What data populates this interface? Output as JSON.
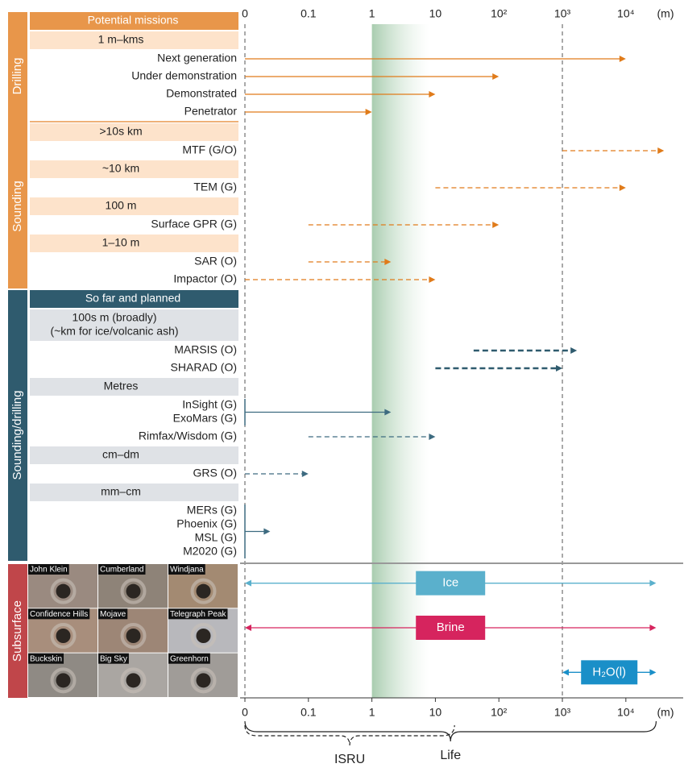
{
  "chart_data": {
    "type": "range",
    "unit": "(m)",
    "log": true,
    "xlim": [
      0.01,
      80000
    ],
    "xticks": [
      {
        "value": 0.01,
        "label": "0"
      },
      0.1,
      1,
      10,
      {
        "value": 100,
        "label": "10²"
      },
      {
        "value": 1000,
        "label": "10³"
      },
      {
        "value": 10000,
        "label": "10⁴"
      }
    ],
    "vlines": [
      0.01,
      1000
    ],
    "shade": [
      1,
      8
    ],
    "sections": [
      {
        "label": "Drilling",
        "color": "#e8964a",
        "band_color": "#fde3cb",
        "header": "Potential missions",
        "groups": [
          {
            "band": [
              "1 m–kms"
            ],
            "items": [
              {
                "labels": [
                  "Next generation"
                ],
                "from": 0.01,
                "to": 10000,
                "dashed": false,
                "color": "#e07b1a"
              },
              {
                "labels": [
                  "Under demonstration"
                ],
                "from": 0.01,
                "to": 100,
                "dashed": false,
                "color": "#e07b1a"
              },
              {
                "labels": [
                  "Demonstrated"
                ],
                "from": 0.01,
                "to": 10,
                "dashed": false,
                "color": "#e07b1a"
              },
              {
                "labels": [
                  "Penetrator"
                ],
                "from": 0.01,
                "to": 1,
                "dashed": false,
                "color": "#e07b1a"
              }
            ]
          }
        ]
      },
      {
        "label": "Sounding",
        "color": "#e8964a",
        "band_color": "#fde3cb",
        "groups": [
          {
            "band": [
              ">10s km"
            ],
            "items": [
              {
                "labels": [
                  "MTF (G/O)"
                ],
                "from": 1000,
                "to": 40000,
                "dashed": true,
                "color": "#e07b1a"
              }
            ]
          },
          {
            "band": [
              "~10 km"
            ],
            "items": [
              {
                "labels": [
                  "TEM (G)"
                ],
                "from": 10,
                "to": 10000,
                "dashed": true,
                "color": "#e07b1a"
              }
            ]
          },
          {
            "band": [
              "100 m"
            ],
            "items": [
              {
                "labels": [
                  "Surface GPR (G)"
                ],
                "from": 0.1,
                "to": 100,
                "dashed": true,
                "color": "#e07b1a"
              }
            ]
          },
          {
            "band": [
              "1–10 m"
            ],
            "items": [
              {
                "labels": [
                  "SAR (O)"
                ],
                "from": 0.1,
                "to": 2,
                "dashed": true,
                "color": "#e07b1a"
              },
              {
                "labels": [
                  "Impactor (O)"
                ],
                "from": 0.01,
                "to": 10,
                "dashed": true,
                "color": "#e07b1a"
              }
            ]
          }
        ]
      },
      {
        "label": "Sounding/drilling",
        "color": "#2f5b6e",
        "band_color": "#dfe2e6",
        "header": "So far and planned",
        "groups": [
          {
            "band": [
              "100s m (broadly)",
              "(~km for ice/volcanic ash)"
            ],
            "items": [
              {
                "labels": [
                  "MARSIS  (O)"
                ],
                "from": 40,
                "to": 1700,
                "dashed": true,
                "thick": true,
                "color": "#2f5b6e"
              },
              {
                "labels": [
                  "SHARAD (O)"
                ],
                "from": 10,
                "to": 1000,
                "dashed": true,
                "thick": true,
                "color": "#2f5b6e"
              }
            ]
          },
          {
            "band": [
              "Metres"
            ],
            "items": [
              {
                "labels": [
                  "InSight (G)",
                  "ExoMars (G)"
                ],
                "from": 0.01,
                "to": 2,
                "dashed": false,
                "color": "#3d6b80"
              },
              {
                "labels": [
                  "Rimfax/Wisdom (G)"
                ],
                "from": 0.1,
                "to": 10,
                "dashed": true,
                "color": "#3d6b80"
              }
            ]
          },
          {
            "band": [
              "cm–dm"
            ],
            "items": [
              {
                "labels": [
                  "GRS (O)"
                ],
                "from": 0.01,
                "to": 0.1,
                "dashed": true,
                "color": "#3d6b80"
              }
            ]
          },
          {
            "band": [
              "mm–cm"
            ],
            "items": [
              {
                "labels": [
                  "MERs (G)",
                  "Phoenix (G)",
                  "MSL (G)",
                  "M2020 (G)"
                ],
                "from": 0.01,
                "to": 0.025,
                "dashed": false,
                "color": "#3d6b80"
              }
            ]
          }
        ]
      }
    ],
    "subsurface": {
      "label": "Subsurface",
      "color": "#c0464a",
      "photos": [
        "John Klein",
        "Cumberland",
        "Windjana",
        "Confidence Hills",
        "Mojave",
        "Telegraph Peak",
        "Buckskin",
        "Big Sky",
        "Greenhorn"
      ],
      "ranges": [
        {
          "name": "Ice",
          "from": 0.01,
          "to": 30000,
          "color": "#5ab0cc"
        },
        {
          "name": "Brine",
          "from": 0.01,
          "to": 30000,
          "color": "#d6245e"
        },
        {
          "name": "H₂O(l)",
          "from": 1000,
          "to": 30000,
          "color": "#1a8fc8"
        }
      ]
    },
    "braces": [
      {
        "label": "ISRU",
        "from": 0.01,
        "to": 20,
        "dashed": true
      },
      {
        "label": "Life",
        "from": 0.01,
        "to": 30000,
        "dashed": false
      }
    ]
  }
}
